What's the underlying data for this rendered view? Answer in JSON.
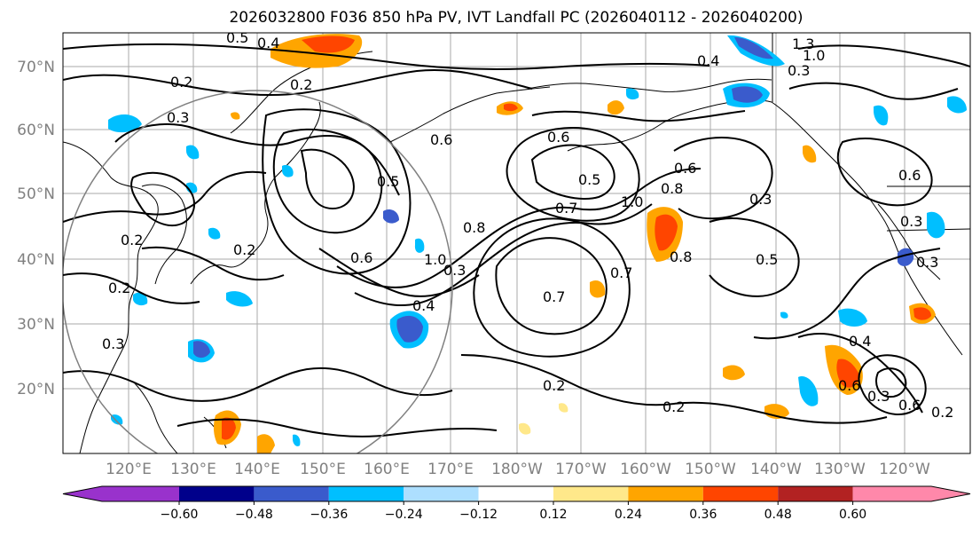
{
  "title": "2026032800 F036 850 hPa PV, IVT Landfall PC (2026040112 - 2026040200)",
  "lat_labels": [
    "70°N",
    "60°N",
    "50°N",
    "40°N",
    "30°N",
    "20°N"
  ],
  "lon_labels": [
    "120°E",
    "130°E",
    "140°E",
    "150°E",
    "160°E",
    "170°E",
    "180°W",
    "170°W",
    "160°W",
    "150°W",
    "140°W",
    "130°W",
    "120°W"
  ],
  "colorbar": {
    "ticks": [
      "−0.60",
      "−0.48",
      "−0.36",
      "−0.24",
      "−0.12",
      "0.12",
      "0.24",
      "0.36",
      "0.48",
      "0.60"
    ],
    "colors": [
      "#9932CC",
      "#00008B",
      "#3A5BCC",
      "#00BFFF",
      "#ADDFFF",
      "#FFFFFF",
      "#FFE88A",
      "#FFA500",
      "#FF4500",
      "#B22222",
      "#FF88AA"
    ]
  },
  "contour_labels": [
    "0.5",
    "0.4",
    "0.2",
    "0.2",
    "0.5",
    "0.6",
    "0.8",
    "0.3",
    "0.2",
    "0.6",
    "0.5",
    "0.6",
    "0.7",
    "1.0",
    "0.8",
    "0.6",
    "0.7",
    "0.7",
    "0.8",
    "0.5",
    "0.3",
    "0.6",
    "0.3",
    "0.4",
    "0.6",
    "0.3",
    "0.6",
    "0.2",
    "0.2",
    "0.2",
    "0.3",
    "0.2",
    "1.0",
    "0.3",
    "0.4",
    "1.3",
    "1.0",
    "0.3",
    "0.4",
    "0.3",
    "0.2"
  ]
}
